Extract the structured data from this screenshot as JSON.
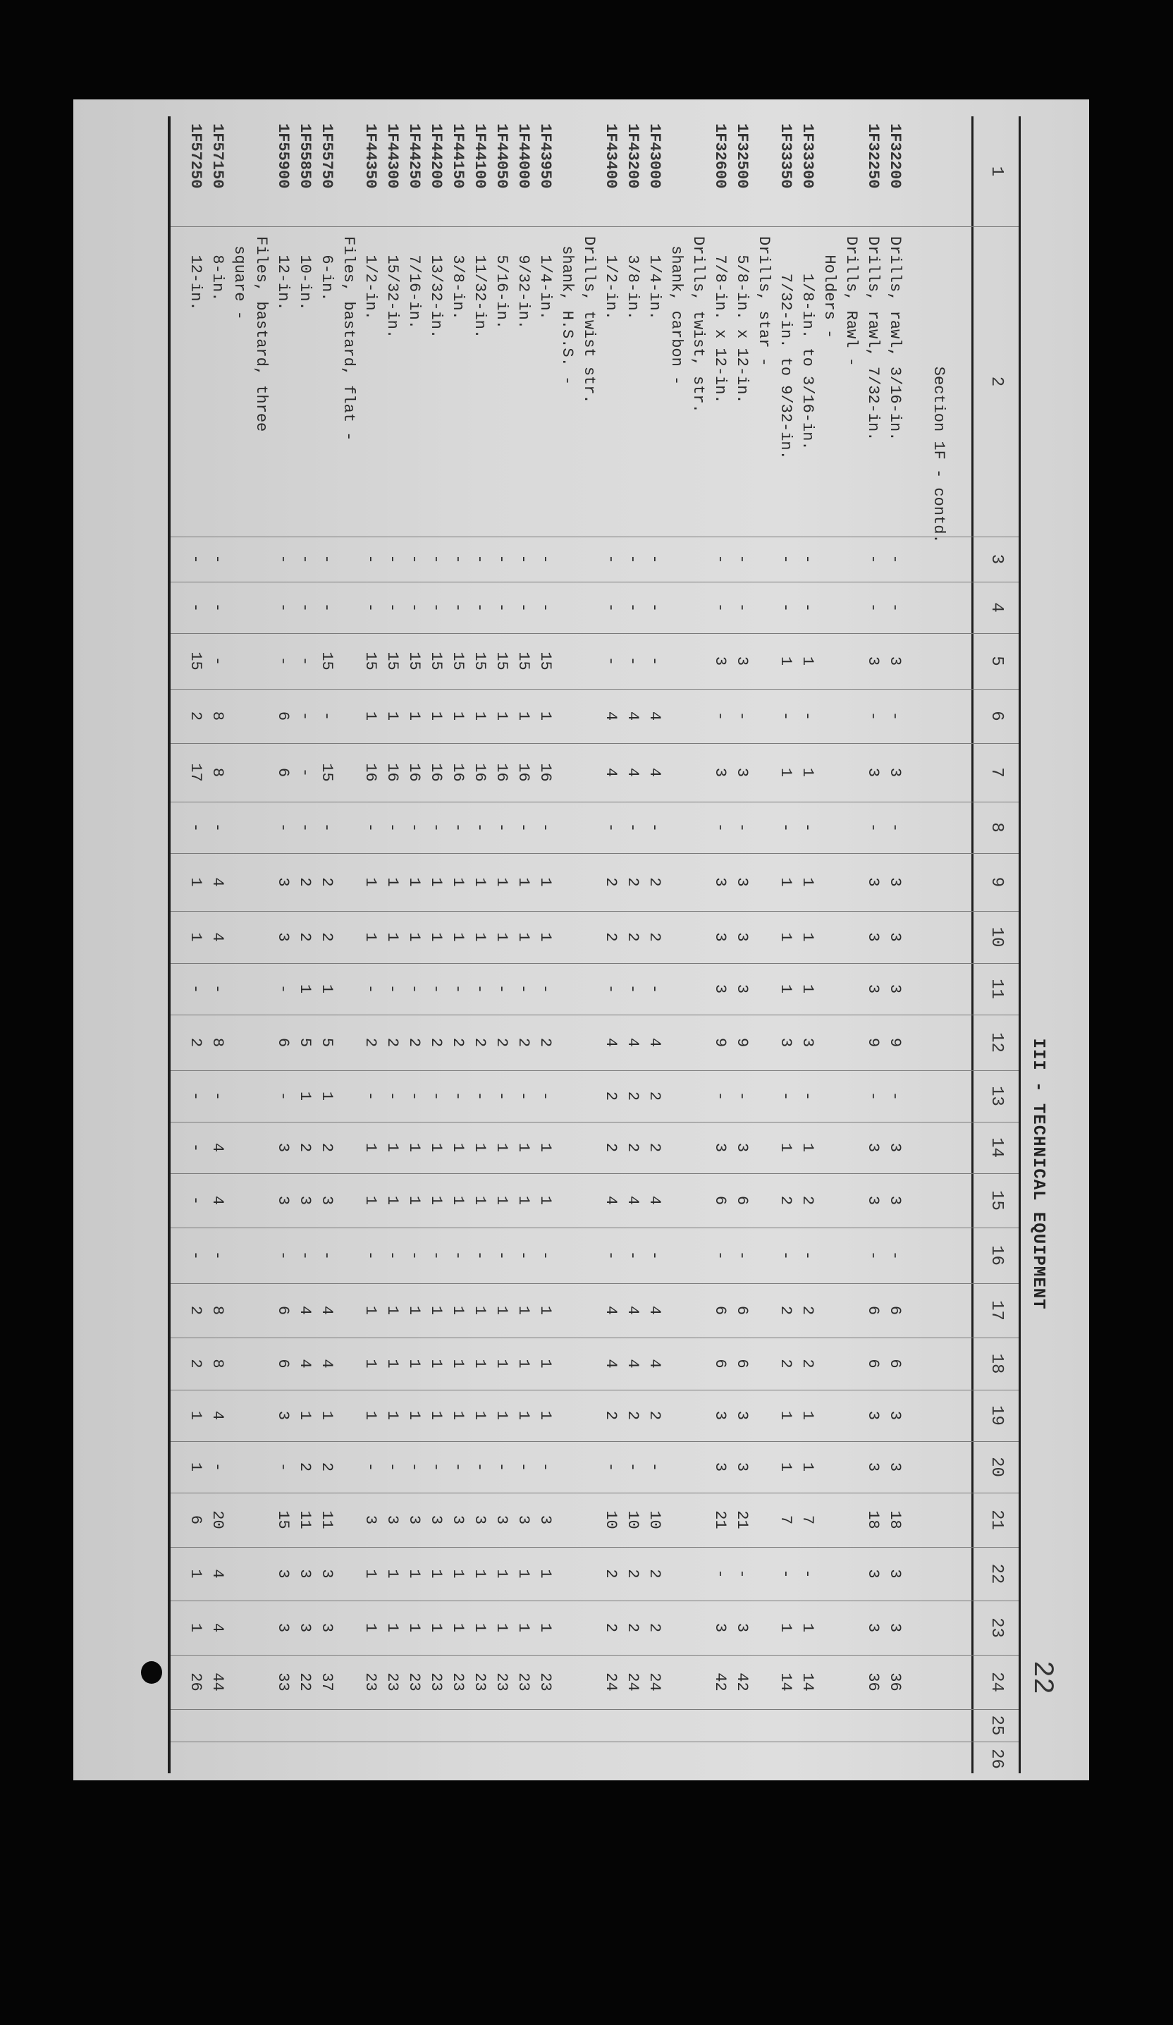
{
  "header": {
    "title": "III - TECHNICAL EQUIPMENT",
    "page_number": "22"
  },
  "table": {
    "column_headers": [
      "1",
      "2",
      "3",
      "4",
      "5",
      "6",
      "7",
      "8",
      "9",
      "10",
      "11",
      "12",
      "13",
      "14",
      "15",
      "16",
      "17",
      "18",
      "19",
      "20",
      "21",
      "22",
      "23",
      "24",
      "25",
      "26"
    ],
    "rows": [
      {
        "line": 0,
        "code": "",
        "desc": "Section 1F - contd.",
        "indent": 14
      },
      {
        "line": 2,
        "code": "1F32200",
        "desc": "Drills, rawl, 3/16-in.",
        "indent": 0,
        "values": [
          "-",
          "-",
          "3",
          "-",
          "3",
          "-",
          "3",
          "3",
          "3",
          "9",
          "-",
          "3",
          "3",
          "-",
          "6",
          "6",
          "3",
          "3",
          "18",
          "3",
          "3",
          "36"
        ]
      },
      {
        "line": 3,
        "code": "1F32250",
        "desc": "Drills, rawl, 7/32-in.",
        "indent": 0,
        "values": [
          "-",
          "-",
          "3",
          "-",
          "3",
          "-",
          "3",
          "3",
          "3",
          "9",
          "-",
          "3",
          "3",
          "-",
          "6",
          "6",
          "3",
          "3",
          "18",
          "3",
          "3",
          "36"
        ]
      },
      {
        "line": 4,
        "code": "",
        "desc": "Drills, Rawl -",
        "indent": 0
      },
      {
        "line": 5,
        "code": "",
        "desc": "Holders -",
        "indent": 2
      },
      {
        "line": 6,
        "code": "1F33300",
        "desc": "1/8-in. to 3/16-in.",
        "indent": 4,
        "values": [
          "-",
          "-",
          "1",
          "-",
          "1",
          "-",
          "1",
          "1",
          "1",
          "3",
          "-",
          "1",
          "2",
          "-",
          "2",
          "2",
          "1",
          "1",
          "7",
          "-",
          "1",
          "14"
        ]
      },
      {
        "line": 7,
        "code": "1F33350",
        "desc": "7/32-in. to 9/32-in.",
        "indent": 4,
        "values": [
          "-",
          "-",
          "1",
          "-",
          "1",
          "-",
          "1",
          "1",
          "1",
          "3",
          "-",
          "1",
          "2",
          "-",
          "2",
          "2",
          "1",
          "1",
          "7",
          "-",
          "1",
          "14"
        ]
      },
      {
        "line": 8,
        "code": "",
        "desc": "Drills, star -",
        "indent": 0
      },
      {
        "line": 9,
        "code": "1F32500",
        "desc": "5/8-in. x 12-in.",
        "indent": 2,
        "values": [
          "-",
          "-",
          "3",
          "-",
          "3",
          "-",
          "3",
          "3",
          "3",
          "9",
          "-",
          "3",
          "6",
          "-",
          "6",
          "6",
          "3",
          "3",
          "21",
          "-",
          "3",
          "42"
        ]
      },
      {
        "line": 10,
        "code": "1F32600",
        "desc": "7/8-in. x 12-in.",
        "indent": 2,
        "values": [
          "-",
          "-",
          "3",
          "-",
          "3",
          "-",
          "3",
          "3",
          "3",
          "9",
          "-",
          "3",
          "6",
          "-",
          "6",
          "6",
          "3",
          "3",
          "21",
          "-",
          "3",
          "42"
        ]
      },
      {
        "line": 11,
        "code": "",
        "desc": "Drills, twist, str.",
        "indent": 0
      },
      {
        "line": 12,
        "code": "",
        "desc": "shank, carbon -",
        "indent": 1
      },
      {
        "line": 13,
        "code": "1F43000",
        "desc": "1/4-in.",
        "indent": 2,
        "values": [
          "-",
          "-",
          "-",
          "4",
          "4",
          "-",
          "2",
          "2",
          "-",
          "4",
          "2",
          "2",
          "4",
          "-",
          "4",
          "4",
          "2",
          "-",
          "10",
          "2",
          "2",
          "24"
        ]
      },
      {
        "line": 14,
        "code": "1F43200",
        "desc": "3/8-in.",
        "indent": 2,
        "values": [
          "-",
          "-",
          "-",
          "4",
          "4",
          "-",
          "2",
          "2",
          "-",
          "4",
          "2",
          "2",
          "4",
          "-",
          "4",
          "4",
          "2",
          "-",
          "10",
          "2",
          "2",
          "24"
        ]
      },
      {
        "line": 15,
        "code": "1F43400",
        "desc": "1/2-in.",
        "indent": 2,
        "values": [
          "-",
          "-",
          "-",
          "4",
          "4",
          "-",
          "2",
          "2",
          "-",
          "4",
          "2",
          "2",
          "4",
          "-",
          "4",
          "4",
          "2",
          "-",
          "10",
          "2",
          "2",
          "24"
        ]
      },
      {
        "line": 16,
        "code": "",
        "desc": "Drills, twist str.",
        "indent": 0
      },
      {
        "line": 17,
        "code": "",
        "desc": "shank, H.S.S. -",
        "indent": 1
      },
      {
        "line": 18,
        "code": "1F43950",
        "desc": "1/4-in.",
        "indent": 2,
        "values": [
          "-",
          "-",
          "15",
          "1",
          "16",
          "-",
          "1",
          "1",
          "-",
          "2",
          "-",
          "1",
          "1",
          "-",
          "1",
          "1",
          "1",
          "-",
          "3",
          "1",
          "1",
          "23"
        ]
      },
      {
        "line": 19,
        "code": "1F44000",
        "desc": "9/32-in.",
        "indent": 2,
        "values": [
          "-",
          "-",
          "15",
          "1",
          "16",
          "-",
          "1",
          "1",
          "-",
          "2",
          "-",
          "1",
          "1",
          "-",
          "1",
          "1",
          "1",
          "-",
          "3",
          "1",
          "1",
          "23"
        ]
      },
      {
        "line": 20,
        "code": "1F44050",
        "desc": "5/16-in.",
        "indent": 2,
        "values": [
          "-",
          "-",
          "15",
          "1",
          "16",
          "-",
          "1",
          "1",
          "-",
          "2",
          "-",
          "1",
          "1",
          "-",
          "1",
          "1",
          "1",
          "-",
          "3",
          "1",
          "1",
          "23"
        ]
      },
      {
        "line": 21,
        "code": "1F44100",
        "desc": "11/32-in.",
        "indent": 2,
        "values": [
          "-",
          "-",
          "15",
          "1",
          "16",
          "-",
          "1",
          "1",
          "-",
          "2",
          "-",
          "1",
          "1",
          "-",
          "1",
          "1",
          "1",
          "-",
          "3",
          "1",
          "1",
          "23"
        ]
      },
      {
        "line": 22,
        "code": "1F44150",
        "desc": "3/8-in.",
        "indent": 2,
        "values": [
          "-",
          "-",
          "15",
          "1",
          "16",
          "-",
          "1",
          "1",
          "-",
          "2",
          "-",
          "1",
          "1",
          "-",
          "1",
          "1",
          "1",
          "-",
          "3",
          "1",
          "1",
          "23"
        ]
      },
      {
        "line": 23,
        "code": "1F44200",
        "desc": "13/32-in.",
        "indent": 2,
        "values": [
          "-",
          "-",
          "15",
          "1",
          "16",
          "-",
          "1",
          "1",
          "-",
          "2",
          "-",
          "1",
          "1",
          "-",
          "1",
          "1",
          "1",
          "-",
          "3",
          "1",
          "1",
          "23"
        ]
      },
      {
        "line": 24,
        "code": "1F44250",
        "desc": "7/16-in.",
        "indent": 2,
        "values": [
          "-",
          "-",
          "15",
          "1",
          "16",
          "-",
          "1",
          "1",
          "-",
          "2",
          "-",
          "1",
          "1",
          "-",
          "1",
          "1",
          "1",
          "-",
          "3",
          "1",
          "1",
          "23"
        ]
      },
      {
        "line": 25,
        "code": "1F44300",
        "desc": "15/32-in.",
        "indent": 2,
        "values": [
          "-",
          "-",
          "15",
          "1",
          "16",
          "-",
          "1",
          "1",
          "-",
          "2",
          "-",
          "1",
          "1",
          "-",
          "1",
          "1",
          "1",
          "-",
          "3",
          "1",
          "1",
          "23"
        ]
      },
      {
        "line": 26,
        "code": "1F44350",
        "desc": "1/2-in.",
        "indent": 2,
        "values": [
          "-",
          "-",
          "15",
          "1",
          "16",
          "-",
          "1",
          "1",
          "-",
          "2",
          "-",
          "1",
          "1",
          "-",
          "1",
          "1",
          "1",
          "-",
          "3",
          "1",
          "1",
          "23"
        ]
      },
      {
        "line": 27,
        "code": "",
        "desc": "Files, bastard, flat -",
        "indent": 0
      },
      {
        "line": 28,
        "code": "1F55750",
        "desc": "6-in.",
        "indent": 2,
        "values": [
          "-",
          "-",
          "15",
          "-",
          "15",
          "-",
          "2",
          "2",
          "1",
          "5",
          "1",
          "2",
          "3",
          "-",
          "4",
          "4",
          "1",
          "2",
          "11",
          "3",
          "3",
          "37"
        ]
      },
      {
        "line": 29,
        "code": "1F55850",
        "desc": "10-in.",
        "indent": 2,
        "values": [
          "-",
          "-",
          "-",
          "-",
          "-",
          "-",
          "2",
          "2",
          "1",
          "5",
          "1",
          "2",
          "3",
          "-",
          "4",
          "4",
          "1",
          "2",
          "11",
          "3",
          "3",
          "22"
        ]
      },
      {
        "line": 30,
        "code": "1F55900",
        "desc": "12-in.",
        "indent": 2,
        "values": [
          "-",
          "-",
          "-",
          "6",
          "6",
          "-",
          "3",
          "3",
          "-",
          "6",
          "-",
          "3",
          "3",
          "-",
          "6",
          "6",
          "3",
          "-",
          "15",
          "3",
          "3",
          "33"
        ]
      },
      {
        "line": 31,
        "code": "",
        "desc": "Files, bastard, three",
        "indent": 0
      },
      {
        "line": 32,
        "code": "",
        "desc": "square -",
        "indent": 1
      },
      {
        "line": 33,
        "code": "1F57150",
        "desc": "8-in.",
        "indent": 2,
        "values": [
          "-",
          "-",
          "-",
          "8",
          "8",
          "-",
          "4",
          "4",
          "-",
          "8",
          "-",
          "4",
          "4",
          "-",
          "8",
          "8",
          "4",
          "-",
          "20",
          "4",
          "4",
          "44"
        ]
      },
      {
        "line": 34,
        "code": "1F57250",
        "desc": "12-in.",
        "indent": 2,
        "values": [
          "-",
          "-",
          "15",
          "2",
          "17",
          "-",
          "1",
          "1",
          "-",
          "2",
          "-",
          "-",
          "-",
          "-",
          "2",
          "2",
          "1",
          "1",
          "6",
          "1",
          "1",
          "26"
        ]
      }
    ]
  }
}
